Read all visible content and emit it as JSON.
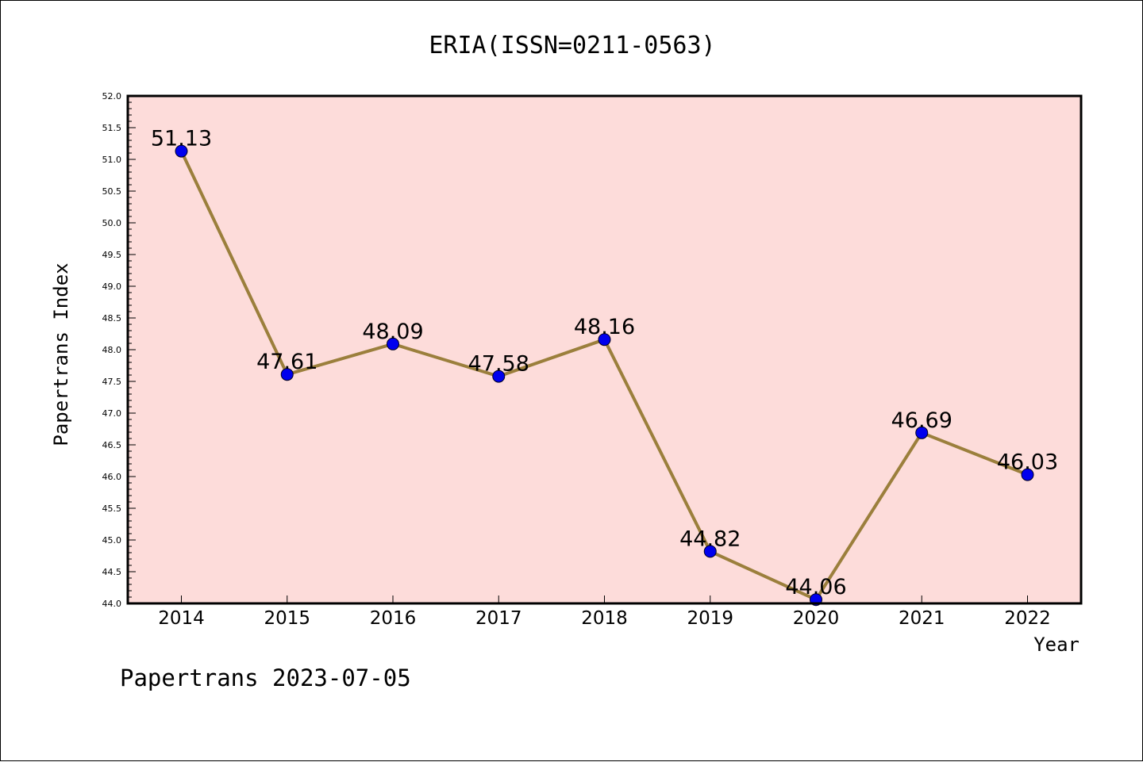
{
  "chart_data": {
    "type": "line",
    "title": "ERIA(ISSN=0211-0563)",
    "xlabel": "Year",
    "ylabel": "Papertrans Index",
    "categories": [
      "2014",
      "2015",
      "2016",
      "2017",
      "2018",
      "2019",
      "2020",
      "2021",
      "2022"
    ],
    "values": [
      51.13,
      47.61,
      48.09,
      47.58,
      48.16,
      44.82,
      44.06,
      46.69,
      46.03
    ],
    "data_labels": [
      "51.13",
      "47.61",
      "48.09",
      "47.58",
      "48.16",
      "44.82",
      "44.06",
      "46.69",
      "46.03"
    ],
    "ylim": [
      44.0,
      52.0
    ],
    "yticks": [
      "44.0",
      "44.5",
      "45.0",
      "45.5",
      "46.0",
      "46.5",
      "47.0",
      "47.5",
      "48.0",
      "48.5",
      "49.0",
      "49.5",
      "50.0",
      "50.5",
      "51.0",
      "51.5",
      "52.0"
    ],
    "grid": false,
    "legend": "none",
    "colors": {
      "plot_background": "#fddcda",
      "line": "#9b7f3c",
      "marker": "#0000ee"
    },
    "footer": "Papertrans 2023-07-05"
  }
}
